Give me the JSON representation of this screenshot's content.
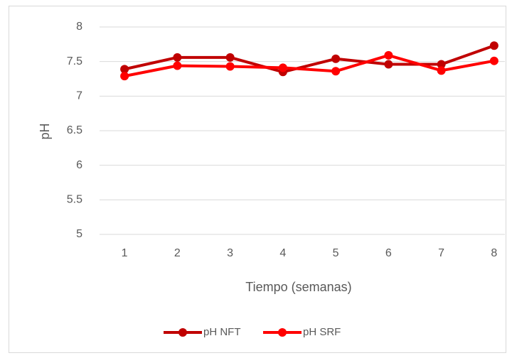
{
  "chart_data": {
    "type": "line",
    "categories": [
      "1",
      "2",
      "3",
      "4",
      "5",
      "6",
      "7",
      "8"
    ],
    "series": [
      {
        "name": "pH NFT",
        "color": "#c00000",
        "values": [
          7.39,
          7.56,
          7.56,
          7.35,
          7.54,
          7.46,
          7.46,
          7.73
        ]
      },
      {
        "name": "pH SRF",
        "color": "#ff0000",
        "values": [
          7.29,
          7.44,
          7.43,
          7.41,
          7.36,
          7.59,
          7.37,
          7.51
        ]
      }
    ],
    "x_label": "Tiempo (semanas)",
    "y_label": "pH",
    "ylim": [
      5,
      8
    ],
    "yticks": [
      5,
      5.5,
      6,
      6.5,
      7,
      7.5,
      8
    ],
    "grid": true,
    "legend": "bottom"
  }
}
